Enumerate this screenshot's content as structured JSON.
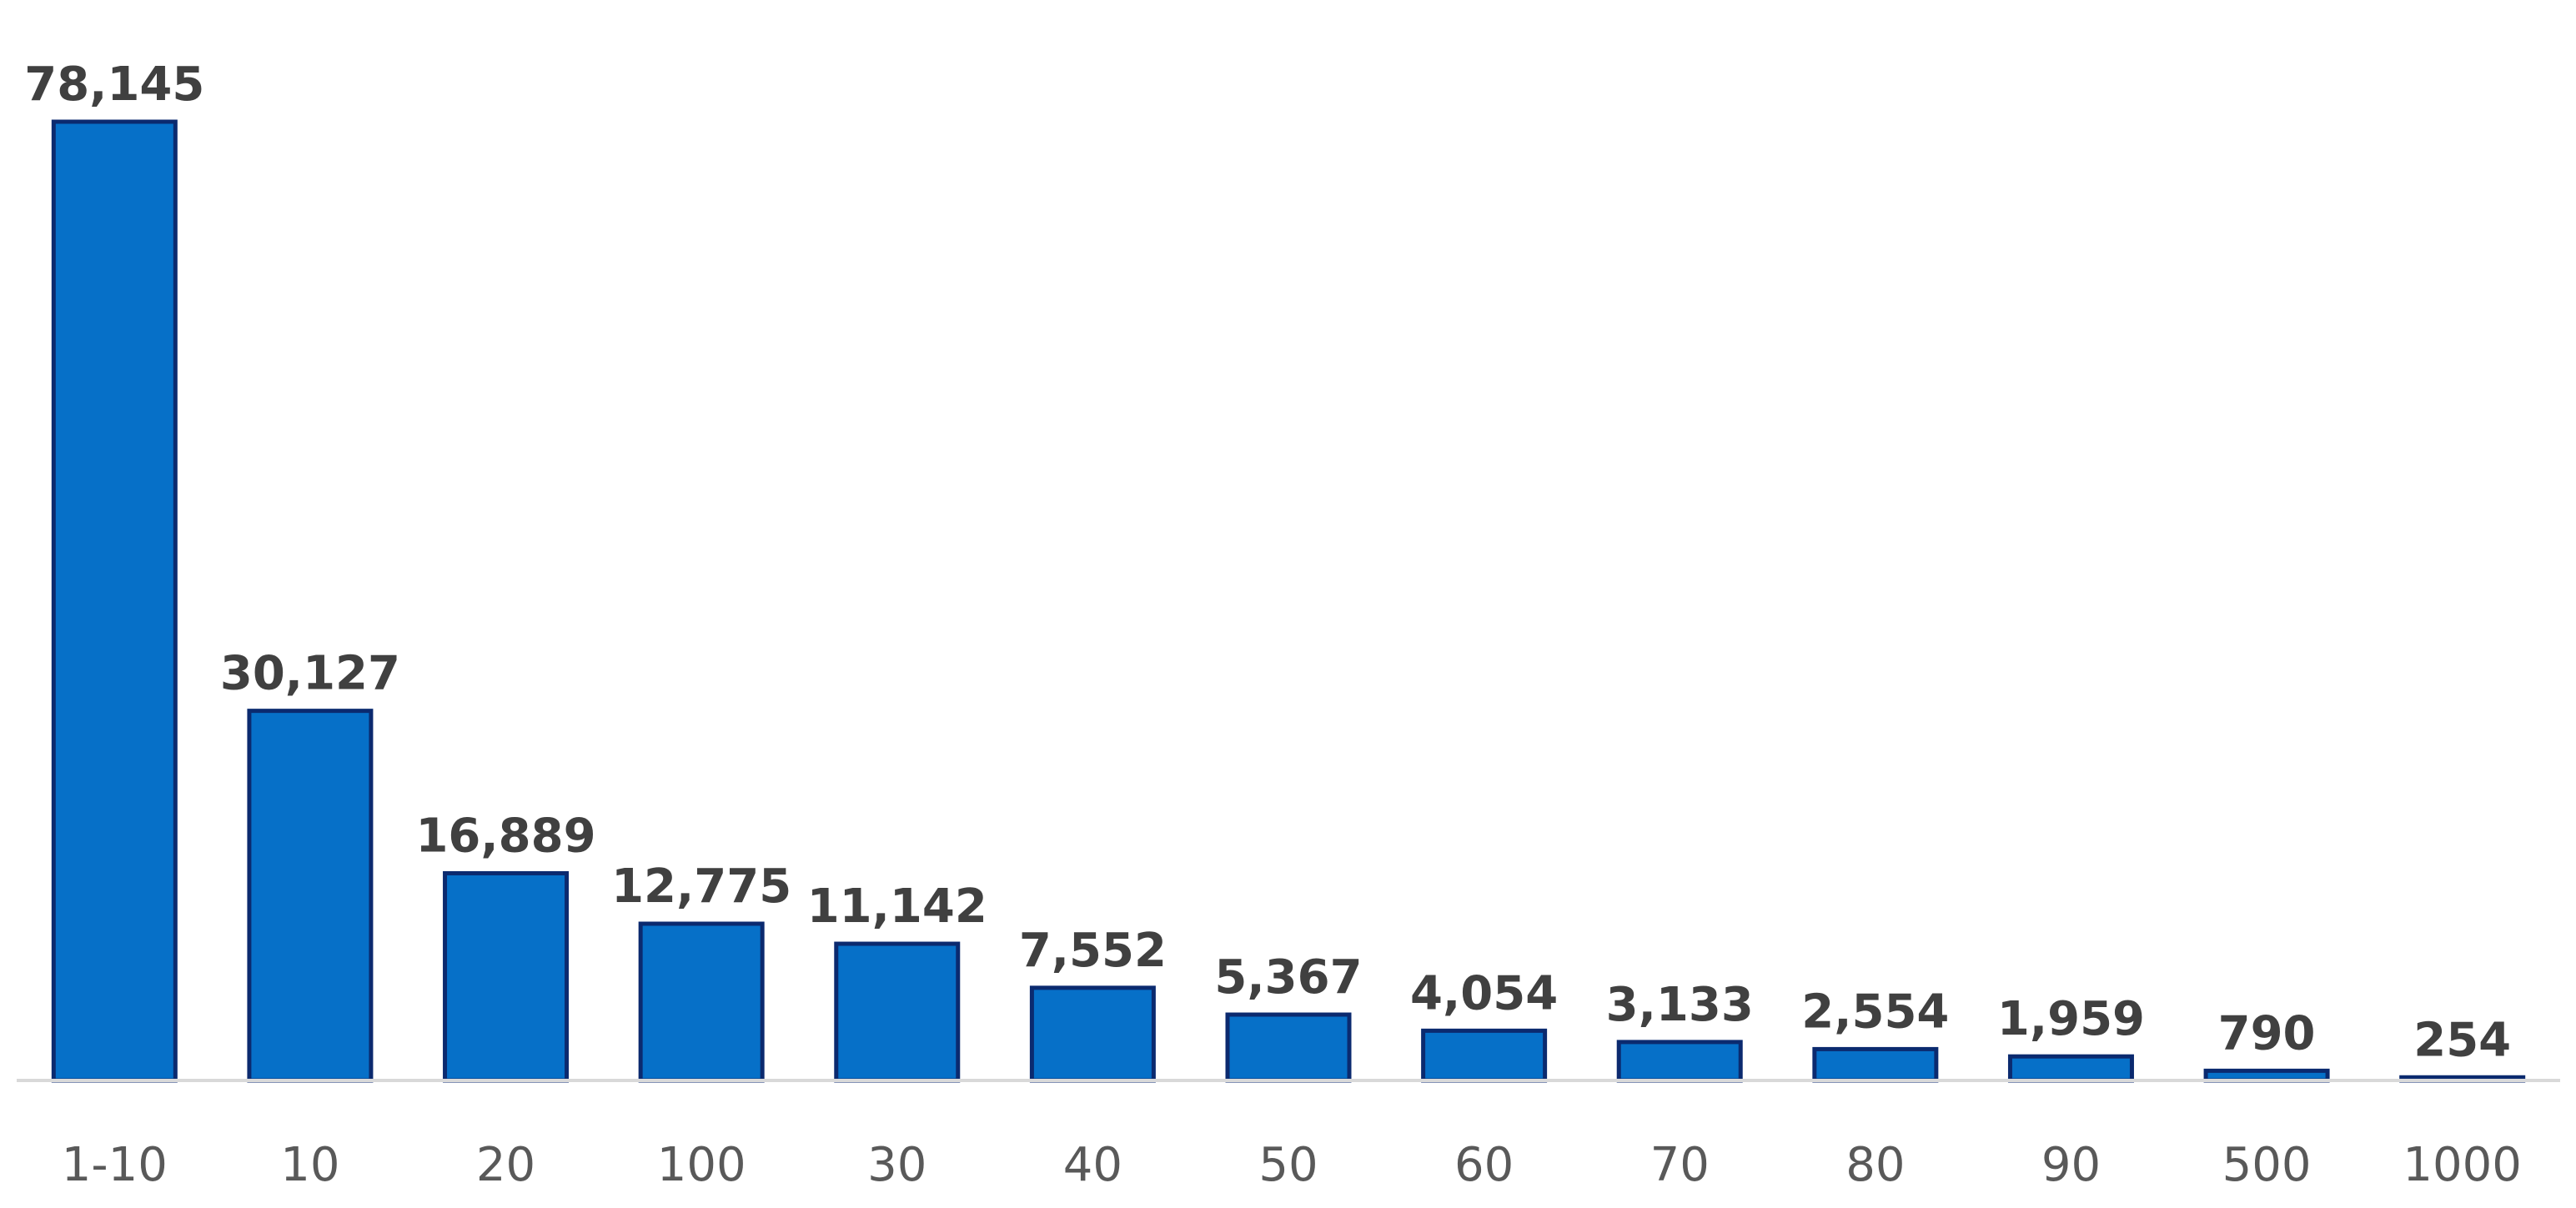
{
  "chart_data": {
    "type": "bar",
    "categories": [
      "1-10",
      "10",
      "20",
      "100",
      "30",
      "40",
      "50",
      "60",
      "70",
      "80",
      "90",
      "500",
      "1000"
    ],
    "values": [
      78145,
      30127,
      16889,
      12775,
      11142,
      7552,
      5367,
      4054,
      3133,
      2554,
      1959,
      790,
      254
    ],
    "data_labels": [
      "78,145",
      "30,127",
      "16,889",
      "12,775",
      "11,142",
      "7,552",
      "5,367",
      "4,054",
      "3,133",
      "2,554",
      "1,959",
      "790",
      "254"
    ],
    "title": "",
    "xlabel": "",
    "ylabel": "",
    "ylim": [
      0,
      78145
    ],
    "grid": false,
    "legend": "none",
    "colors": {
      "bar_fill": "#0670C8",
      "bar_outline": "#0B2A6F",
      "data_label": "#404040",
      "tick_label": "#595959",
      "axis_line": "#D9D9D9"
    }
  }
}
